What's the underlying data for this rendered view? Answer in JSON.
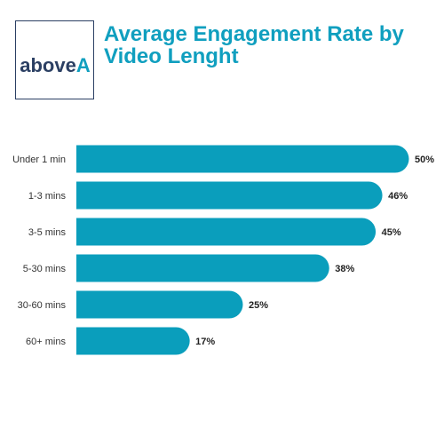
{
  "logo": {
    "text_main": "above",
    "text_accent": "A"
  },
  "title_lines": [
    "Average Engagement Rate by",
    "Video Lenght"
  ],
  "colors": {
    "bar": "#0a9ebc",
    "title": "#109fbf",
    "logo_border": "#2b3f63",
    "label": "#333333",
    "value": "#222222"
  },
  "chart_data": {
    "type": "bar",
    "orientation": "horizontal",
    "categories": [
      "Under 1 min",
      "1-3 mins",
      "3-5 mins",
      "5-30 mins",
      "30-60 mins",
      "60+ mins"
    ],
    "values": [
      50,
      46,
      45,
      38,
      25,
      17
    ],
    "value_labels": [
      "50%",
      "46%",
      "45%",
      "38%",
      "25%",
      "17%"
    ],
    "title": "Average Engagement Rate by Video Lenght",
    "xlabel": "",
    "ylabel": "",
    "xlim": [
      0,
      50
    ],
    "grid": false,
    "legend": "none"
  }
}
